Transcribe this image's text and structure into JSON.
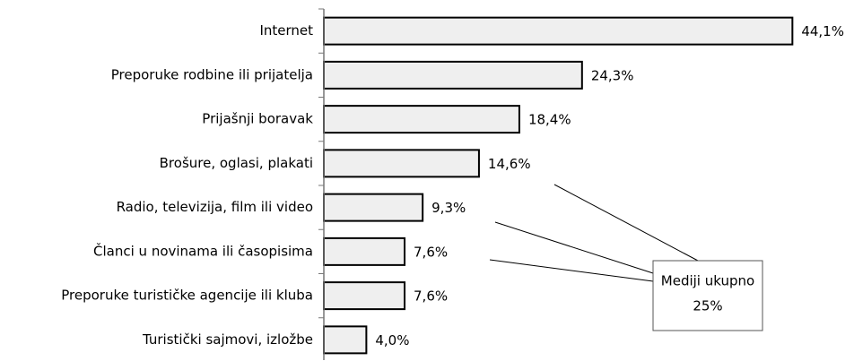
{
  "chart_data": {
    "type": "bar",
    "orientation": "horizontal",
    "categories": [
      "Internet",
      "Preporuke rodbine ili prijatelja",
      "Prijašnji boravak",
      "Brošure, oglasi, plakati",
      "Radio, televizija, film ili video",
      "Članci u novinama ili časopisima",
      "Preporuke turističke agencije ili kluba",
      "Turistički sajmovi, izložbe"
    ],
    "values": [
      44.1,
      24.3,
      18.4,
      14.6,
      9.3,
      7.6,
      7.6,
      4.0
    ],
    "value_labels": [
      "44,1%",
      "24,3%",
      "18,4%",
      "14,6%",
      "9,3%",
      "7,6%",
      "7,6%",
      "4,0%"
    ],
    "color": "#efefef",
    "xlim": [
      0,
      45
    ],
    "annotation": {
      "lines": [
        "Mediji ukupno",
        "25%"
      ]
    }
  }
}
